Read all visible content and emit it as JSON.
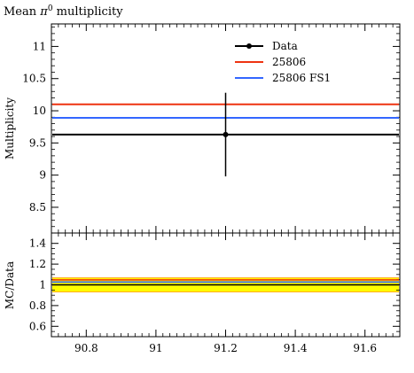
{
  "chart_data": {
    "type": "line",
    "title": "Mean π⁰ multiplicity",
    "title_main": "Mean ",
    "title_pi": "π",
    "title_sup": "0",
    "title_rest": " multiplicity",
    "ylabel": "Multiplicity",
    "ratio_ylabel": "MC/Data",
    "xlim": [
      90.7,
      91.7
    ],
    "ylim": [
      8.1,
      11.35
    ],
    "ratio_ylim": [
      0.5,
      1.5
    ],
    "x_ticks": [
      90.8,
      91.0,
      91.2,
      91.4,
      91.6
    ],
    "x_tick_labels": [
      "90.8",
      "91",
      "91.2",
      "91.4",
      "91.6"
    ],
    "y_ticks": [
      8.5,
      9.0,
      9.5,
      10.0,
      10.5,
      11.0
    ],
    "y_tick_labels": [
      "8.5",
      "9",
      "9.5",
      "10",
      "10.5",
      "11"
    ],
    "ratio_y_ticks": [
      0.6,
      0.8,
      1.0,
      1.2,
      1.4
    ],
    "ratio_y_tick_labels": [
      "0.6",
      "0.8",
      "1",
      "1.2",
      "1.4"
    ],
    "legend_placement": "top-right",
    "data_point": {
      "x": 91.2,
      "y": 9.63,
      "y_err_low": 0.65,
      "y_err_high": 0.65
    },
    "series": [
      {
        "name": "Data",
        "color": "#000000",
        "y": 9.63
      },
      {
        "name": "25806",
        "color": "#ee3311",
        "y": 10.1
      },
      {
        "name": "25806 FS1",
        "color": "#3366ff",
        "y": 9.89
      }
    ],
    "ratio_series": [
      {
        "name": "Data",
        "color": "#000000",
        "value": 1.0
      },
      {
        "name": "25806",
        "color": "#ee3311",
        "value": 1.048
      },
      {
        "name": "25806 FS1",
        "color": "#3366ff",
        "value": 1.027
      }
    ],
    "ratio_band": {
      "low": 0.933,
      "high": 1.067,
      "color": "#ffff00"
    },
    "ratio_band_edge_color": "#ffaa00"
  }
}
